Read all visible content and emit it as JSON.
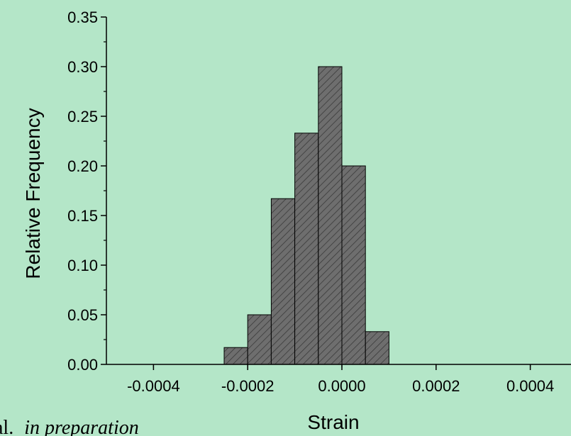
{
  "chart_data": {
    "type": "bar",
    "title": "",
    "xlabel": "Strain",
    "ylabel": "Relative Frequency",
    "xlim": [
      -0.0005,
      0.0005
    ],
    "ylim": [
      0,
      0.35
    ],
    "bin_width": 5e-05,
    "bins": [
      {
        "x0": -0.00025,
        "x1": -0.0002,
        "value": 0.017
      },
      {
        "x0": -0.0002,
        "x1": -0.00015,
        "value": 0.05
      },
      {
        "x0": -0.00015,
        "x1": -0.0001,
        "value": 0.167
      },
      {
        "x0": -0.0001,
        "x1": -5e-05,
        "value": 0.233
      },
      {
        "x0": -5e-05,
        "x1": 0.0,
        "value": 0.3
      },
      {
        "x0": 0.0,
        "x1": 5e-05,
        "value": 0.2
      },
      {
        "x0": 5e-05,
        "x1": 0.0001,
        "value": 0.033
      }
    ],
    "x_ticks": [
      {
        "value": -0.0004,
        "label": "-0.0004"
      },
      {
        "value": -0.0002,
        "label": "-0.0002"
      },
      {
        "value": 0.0,
        "label": "0.0000"
      },
      {
        "value": 0.0002,
        "label": "0.0002"
      },
      {
        "value": 0.0004,
        "label": "0.0004"
      }
    ],
    "y_ticks": [
      {
        "value": 0.0,
        "label": "0.00"
      },
      {
        "value": 0.05,
        "label": "0.05"
      },
      {
        "value": 0.1,
        "label": "0.10"
      },
      {
        "value": 0.15,
        "label": "0.15"
      },
      {
        "value": 0.2,
        "label": "0.20"
      },
      {
        "value": 0.25,
        "label": "0.25"
      },
      {
        "value": 0.3,
        "label": "0.30"
      },
      {
        "value": 0.35,
        "label": "0.35"
      }
    ],
    "grid": false,
    "colors": {
      "background": "#b4e6c8",
      "bar_fill": "#6e6e6e",
      "hatch": "#3a3a3a",
      "axis": "#000000"
    }
  },
  "footnote": {
    "prefix": "al.",
    "italic": "in preparation"
  }
}
